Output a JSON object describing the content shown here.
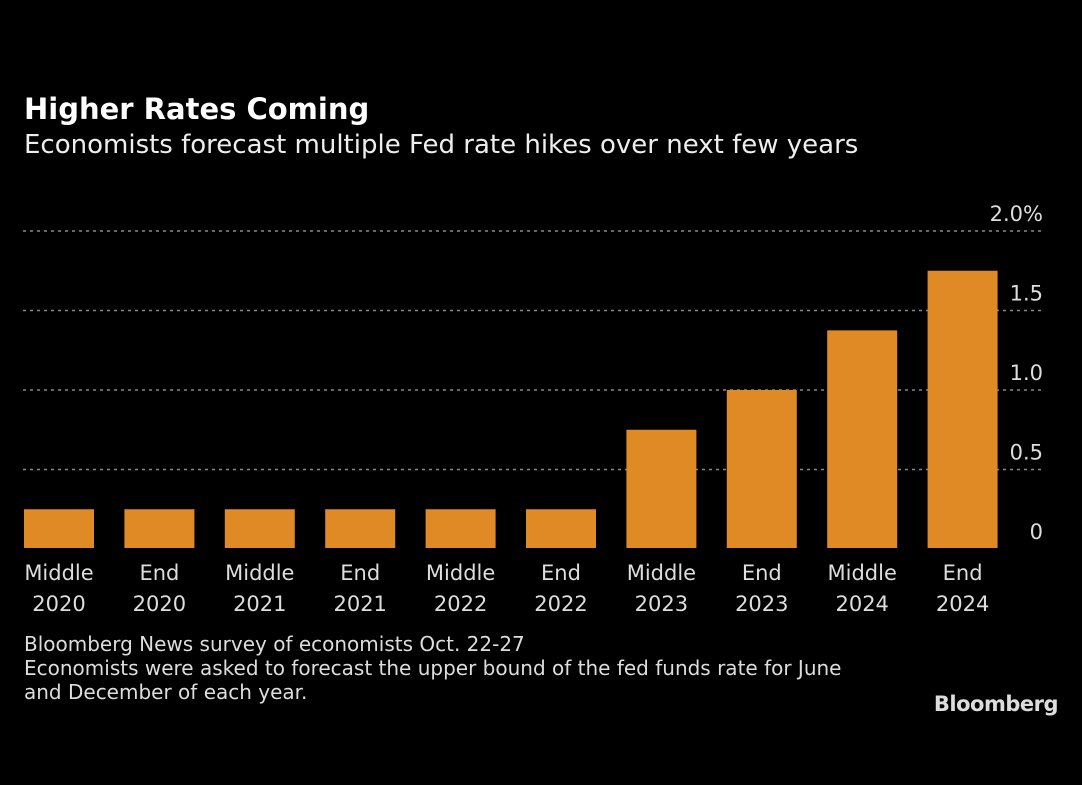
{
  "chart_data": {
    "type": "bar",
    "title": "Higher Rates Coming",
    "subtitle": "Economists forecast multiple Fed rate hikes over next few years",
    "categories": [
      [
        "Middle",
        "2020"
      ],
      [
        "End",
        "2020"
      ],
      [
        "Middle",
        "2021"
      ],
      [
        "End",
        "2021"
      ],
      [
        "Middle",
        "2022"
      ],
      [
        "End",
        "2022"
      ],
      [
        "Middle",
        "2023"
      ],
      [
        "End",
        "2023"
      ],
      [
        "Middle",
        "2024"
      ],
      [
        "End",
        "2024"
      ]
    ],
    "values": [
      0.25,
      0.25,
      0.25,
      0.25,
      0.25,
      0.25,
      0.75,
      1.0,
      1.375,
      1.75
    ],
    "ylim": [
      0,
      2.0
    ],
    "yticks": [
      0,
      0.5,
      1.0,
      1.5,
      2.0
    ],
    "ytick_labels": [
      "0",
      "0.5",
      "1.0",
      "1.5",
      "2.0%"
    ],
    "y_axis_position": "right",
    "grid": true,
    "bar_color": "#df8a24"
  },
  "notes": [
    "Bloomberg News survey of economists Oct. 22-27",
    "Economists were asked to forecast the upper bound of the fed funds rate for June",
    "and December of each year."
  ],
  "logo": "Bloomberg"
}
